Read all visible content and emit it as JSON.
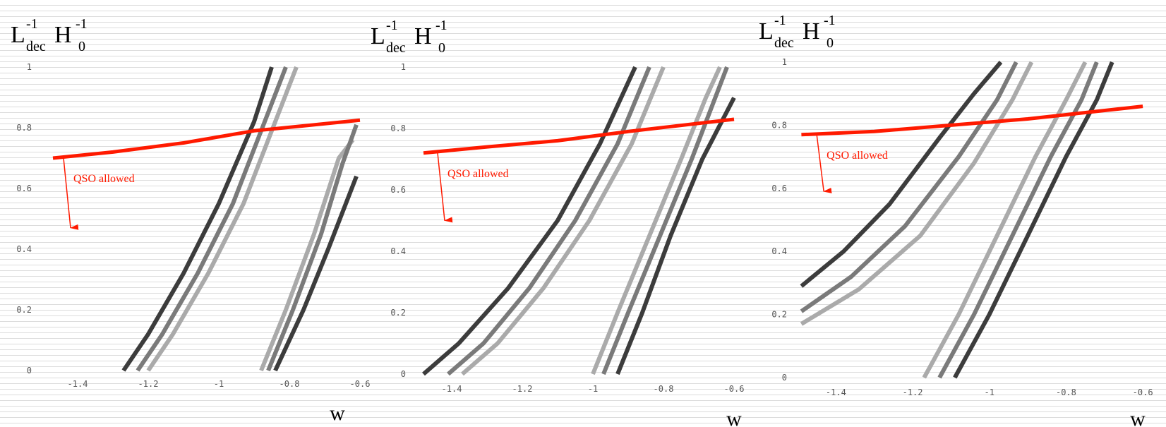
{
  "chart_data": [
    {
      "type": "line",
      "ylabel": {
        "L": "L",
        "exp1": "-1",
        "sub": "dec",
        "H": "H",
        "exp2": "-1",
        "sub2": "0"
      },
      "xlabel": "w",
      "xlim": [
        -1.5,
        -0.58
      ],
      "ylim": [
        0,
        1
      ],
      "xticks": [
        -1.4,
        -1.2,
        -1,
        -0.8,
        -0.6
      ],
      "xtick_labels": [
        "-1.4",
        "-1.2",
        "-1",
        "-0.8",
        "-0.6"
      ],
      "yticks": [
        0,
        0.2,
        0.4,
        0.6,
        0.8,
        1
      ],
      "ytick_labels": [
        "0",
        "0.2",
        "0.4",
        "0.6",
        "0.8",
        "1"
      ],
      "annotation": "QSO allowed",
      "qso_line": {
        "x": [
          -1.47,
          -1.3,
          -1.1,
          -0.9,
          -0.6
        ],
        "y": [
          0.7,
          0.72,
          0.75,
          0.79,
          0.825
        ]
      },
      "arrow": {
        "x": -1.44,
        "y_start": 0.7,
        "y_end": 0.47
      },
      "series": [
        {
          "color": "#3c3c3c",
          "x": [
            -1.27,
            -1.2,
            -1.1,
            -1.0,
            -0.9,
            -0.85
          ],
          "y": [
            0,
            0.12,
            0.32,
            0.55,
            0.82,
            1.0
          ]
        },
        {
          "color": "#7a7a7a",
          "x": [
            -1.23,
            -1.16,
            -1.06,
            -0.96,
            -0.87,
            -0.81
          ],
          "y": [
            0,
            0.12,
            0.32,
            0.55,
            0.82,
            1.0
          ]
        },
        {
          "color": "#aaaaaa",
          "x": [
            -1.2,
            -1.13,
            -1.03,
            -0.93,
            -0.84,
            -0.78
          ],
          "y": [
            0,
            0.12,
            0.32,
            0.55,
            0.82,
            1.0
          ]
        },
        {
          "color": "#aaaaaa",
          "x": [
            -0.88,
            -0.81,
            -0.73,
            -0.66,
            -0.62
          ],
          "y": [
            0,
            0.2,
            0.45,
            0.7,
            0.76
          ]
        },
        {
          "color": "#7a7a7a",
          "x": [
            -0.86,
            -0.79,
            -0.71,
            -0.65,
            -0.61
          ],
          "y": [
            0,
            0.2,
            0.45,
            0.68,
            0.81
          ]
        },
        {
          "color": "#3c3c3c",
          "x": [
            -0.84,
            -0.76,
            -0.69,
            -0.61
          ],
          "y": [
            0,
            0.2,
            0.4,
            0.64
          ]
        }
      ]
    },
    {
      "type": "line",
      "ylabel": {
        "L": "L",
        "exp1": "-1",
        "sub": "dec",
        "H": "H",
        "exp2": "-1",
        "sub2": "0"
      },
      "xlabel": "w",
      "xlim": [
        -1.5,
        -0.58
      ],
      "ylim": [
        0,
        1
      ],
      "xticks": [
        -1.4,
        -1.2,
        -1,
        -0.8,
        -0.6
      ],
      "xtick_labels": [
        "-1.4",
        "-1.2",
        "-1",
        "-0.8",
        "-0.6"
      ],
      "yticks": [
        0,
        0.2,
        0.4,
        0.6,
        0.8,
        1
      ],
      "ytick_labels": [
        "0",
        "0.2",
        "0.4",
        "0.6",
        "0.8",
        "1"
      ],
      "annotation": "QSO allowed",
      "qso_line": {
        "x": [
          -1.48,
          -1.3,
          -1.1,
          -0.9,
          -0.6
        ],
        "y": [
          0.72,
          0.74,
          0.76,
          0.79,
          0.83
        ]
      },
      "arrow": {
        "x": -1.44,
        "y_start": 0.72,
        "y_end": 0.5
      },
      "series": [
        {
          "color": "#3c3c3c",
          "x": [
            -1.48,
            -1.38,
            -1.24,
            -1.1,
            -0.98,
            -0.88
          ],
          "y": [
            0,
            0.1,
            0.28,
            0.5,
            0.75,
            1.0
          ]
        },
        {
          "color": "#7a7a7a",
          "x": [
            -1.41,
            -1.31,
            -1.18,
            -1.05,
            -0.93,
            -0.84
          ],
          "y": [
            0,
            0.1,
            0.28,
            0.5,
            0.75,
            1.0
          ]
        },
        {
          "color": "#aaaaaa",
          "x": [
            -1.37,
            -1.27,
            -1.14,
            -1.01,
            -0.89,
            -0.8
          ],
          "y": [
            0,
            0.1,
            0.28,
            0.5,
            0.75,
            1.0
          ]
        },
        {
          "color": "#aaaaaa",
          "x": [
            -1.0,
            -0.93,
            -0.84,
            -0.75,
            -0.68,
            -0.64
          ],
          "y": [
            0,
            0.2,
            0.45,
            0.7,
            0.9,
            1.0
          ]
        },
        {
          "color": "#7a7a7a",
          "x": [
            -0.97,
            -0.9,
            -0.81,
            -0.72,
            -0.66,
            -0.62
          ],
          "y": [
            0,
            0.2,
            0.45,
            0.7,
            0.88,
            1.0
          ]
        },
        {
          "color": "#3c3c3c",
          "x": [
            -0.93,
            -0.86,
            -0.78,
            -0.69,
            -0.6
          ],
          "y": [
            0,
            0.2,
            0.45,
            0.7,
            0.9
          ]
        }
      ]
    },
    {
      "type": "line",
      "ylabel": {
        "L": "L",
        "exp1": "-1",
        "sub": "dec",
        "H": "H",
        "exp2": "-1",
        "sub2": "0"
      },
      "xlabel": "w",
      "xlim": [
        -1.5,
        -0.58
      ],
      "ylim": [
        0,
        1
      ],
      "xticks": [
        -1.4,
        -1.2,
        -1,
        -0.8,
        -0.6
      ],
      "xtick_labels": [
        "-1.4",
        "-1.2",
        "-1",
        "-0.8",
        "-0.6"
      ],
      "yticks": [
        0,
        0.2,
        0.4,
        0.6,
        0.8,
        1
      ],
      "ytick_labels": [
        "0",
        "0.2",
        "0.4",
        "0.6",
        "0.8",
        "1"
      ],
      "annotation": "QSO allowed",
      "qso_line": {
        "x": [
          -1.49,
          -1.3,
          -1.1,
          -0.9,
          -0.6
        ],
        "y": [
          0.77,
          0.78,
          0.8,
          0.82,
          0.86
        ]
      },
      "arrow": {
        "x": -1.45,
        "y_start": 0.77,
        "y_end": 0.59
      },
      "series": [
        {
          "color": "#3c3c3c",
          "x": [
            -1.49,
            -1.38,
            -1.26,
            -1.13,
            -1.04,
            -0.97
          ],
          "y": [
            0.29,
            0.4,
            0.55,
            0.76,
            0.9,
            1.0
          ]
        },
        {
          "color": "#7a7a7a",
          "x": [
            -1.49,
            -1.36,
            -1.22,
            -1.08,
            -0.98,
            -0.93
          ],
          "y": [
            0.21,
            0.32,
            0.48,
            0.7,
            0.88,
            1.0
          ]
        },
        {
          "color": "#aaaaaa",
          "x": [
            -1.49,
            -1.34,
            -1.18,
            -1.04,
            -0.94,
            -0.89
          ],
          "y": [
            0.17,
            0.28,
            0.45,
            0.68,
            0.88,
            1.0
          ]
        },
        {
          "color": "#aaaaaa",
          "x": [
            -1.17,
            -1.08,
            -0.98,
            -0.88,
            -0.8,
            -0.75
          ],
          "y": [
            0,
            0.2,
            0.45,
            0.7,
            0.88,
            1.0
          ]
        },
        {
          "color": "#7a7a7a",
          "x": [
            -1.13,
            -1.04,
            -0.94,
            -0.84,
            -0.76,
            -0.72
          ],
          "y": [
            0,
            0.2,
            0.45,
            0.7,
            0.88,
            1.0
          ]
        },
        {
          "color": "#3c3c3c",
          "x": [
            -1.09,
            -1.0,
            -0.9,
            -0.8,
            -0.72,
            -0.68
          ],
          "y": [
            0,
            0.2,
            0.45,
            0.7,
            0.88,
            1.0
          ]
        }
      ]
    }
  ]
}
